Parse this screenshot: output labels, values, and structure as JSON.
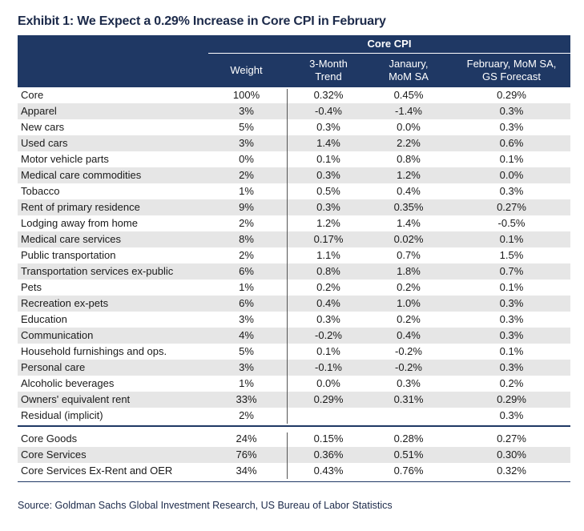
{
  "title": "Exhibit 1: We Expect a 0.29% Increase in Core CPI in February",
  "header": {
    "group_label": "Core CPI",
    "columns": [
      "Weight",
      "3-Month\nTrend",
      "Janaury,\nMoM SA",
      "February, MoM SA,\nGS Forecast"
    ]
  },
  "rows": [
    {
      "name": "Core",
      "weight": "100%",
      "trend": "0.32%",
      "jan": "0.45%",
      "feb": "0.29%"
    },
    {
      "name": "Apparel",
      "weight": "3%",
      "trend": "-0.4%",
      "jan": "-1.4%",
      "feb": "0.3%"
    },
    {
      "name": "New cars",
      "weight": "5%",
      "trend": "0.3%",
      "jan": "0.0%",
      "feb": "0.3%"
    },
    {
      "name": "Used cars",
      "weight": "3%",
      "trend": "1.4%",
      "jan": "2.2%",
      "feb": "0.6%"
    },
    {
      "name": "Motor vehicle parts",
      "weight": "0%",
      "trend": "0.1%",
      "jan": "0.8%",
      "feb": "0.1%"
    },
    {
      "name": "Medical care commodities",
      "weight": "2%",
      "trend": "0.3%",
      "jan": "1.2%",
      "feb": "0.0%"
    },
    {
      "name": "Tobacco",
      "weight": "1%",
      "trend": "0.5%",
      "jan": "0.4%",
      "feb": "0.3%"
    },
    {
      "name": "Rent of primary residence",
      "weight": "9%",
      "trend": "0.3%",
      "jan": "0.35%",
      "feb": "0.27%"
    },
    {
      "name": "Lodging away from home",
      "weight": "2%",
      "trend": "1.2%",
      "jan": "1.4%",
      "feb": "-0.5%"
    },
    {
      "name": "Medical care services",
      "weight": "8%",
      "trend": "0.17%",
      "jan": "0.02%",
      "feb": "0.1%"
    },
    {
      "name": "Public transportation",
      "weight": "2%",
      "trend": "1.1%",
      "jan": "0.7%",
      "feb": "1.5%"
    },
    {
      "name": "Transportation services ex-public",
      "weight": "6%",
      "trend": "0.8%",
      "jan": "1.8%",
      "feb": "0.7%"
    },
    {
      "name": "Pets",
      "weight": "1%",
      "trend": "0.2%",
      "jan": "0.2%",
      "feb": "0.1%"
    },
    {
      "name": "Recreation ex-pets",
      "weight": "6%",
      "trend": "0.4%",
      "jan": "1.0%",
      "feb": "0.3%"
    },
    {
      "name": "Education",
      "weight": "3%",
      "trend": "0.3%",
      "jan": "0.2%",
      "feb": "0.3%"
    },
    {
      "name": "Communication",
      "weight": "4%",
      "trend": "-0.2%",
      "jan": "0.4%",
      "feb": "0.3%"
    },
    {
      "name": "Household furnishings and ops.",
      "weight": "5%",
      "trend": "0.1%",
      "jan": "-0.2%",
      "feb": "0.1%"
    },
    {
      "name": "Personal care",
      "weight": "3%",
      "trend": "-0.1%",
      "jan": "-0.2%",
      "feb": "0.3%"
    },
    {
      "name": "Alcoholic beverages",
      "weight": "1%",
      "trend": "0.0%",
      "jan": "0.3%",
      "feb": "0.2%"
    },
    {
      "name": "Owners' equivalent rent",
      "weight": "33%",
      "trend": "0.29%",
      "jan": "0.31%",
      "feb": "0.29%"
    },
    {
      "name": "Residual (implicit)",
      "weight": "2%",
      "trend": "",
      "jan": "",
      "feb": "0.3%"
    }
  ],
  "summary_rows": [
    {
      "name": "Core Goods",
      "weight": "24%",
      "trend": "0.15%",
      "jan": "0.28%",
      "feb": "0.27%"
    },
    {
      "name": "Core Services",
      "weight": "76%",
      "trend": "0.36%",
      "jan": "0.51%",
      "feb": "0.30%"
    },
    {
      "name": "Core Services Ex-Rent and OER",
      "weight": "34%",
      "trend": "0.43%",
      "jan": "0.76%",
      "feb": "0.32%"
    }
  ],
  "source": "Source: Goldman Sachs Global Investment Research, US Bureau of Labor Statistics",
  "colors": {
    "header_bg": "#1f3864",
    "row_shade": "#e6e6e6"
  }
}
